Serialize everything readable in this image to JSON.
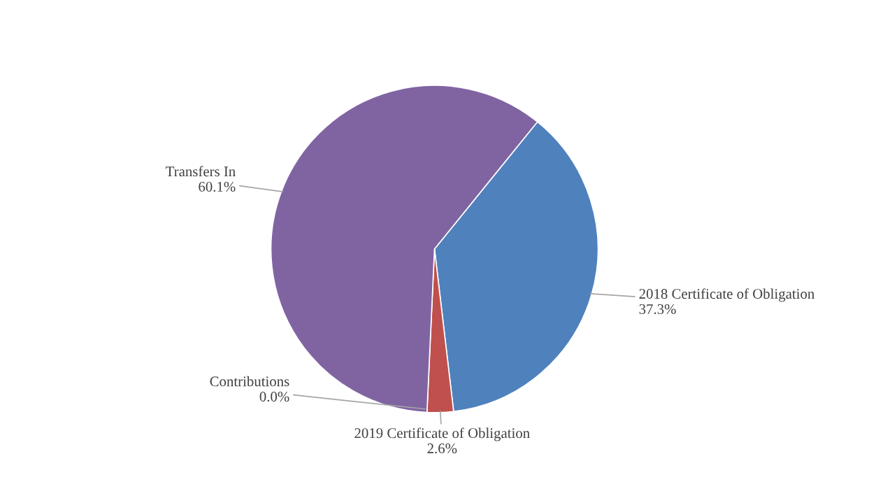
{
  "chart_data": {
    "type": "pie",
    "categories": [
      "2018 Certificate of Obligation",
      "2019 Certificate of Obligation",
      "Contributions",
      "Transfers In"
    ],
    "values": [
      37.3,
      2.6,
      0.0,
      60.1
    ],
    "value_labels": [
      "37.3%",
      "2.6%",
      "0.0%",
      "60.1%"
    ],
    "colors": [
      "#4f81bd",
      "#c0504d",
      "#9bbb59",
      "#8064a2"
    ]
  }
}
